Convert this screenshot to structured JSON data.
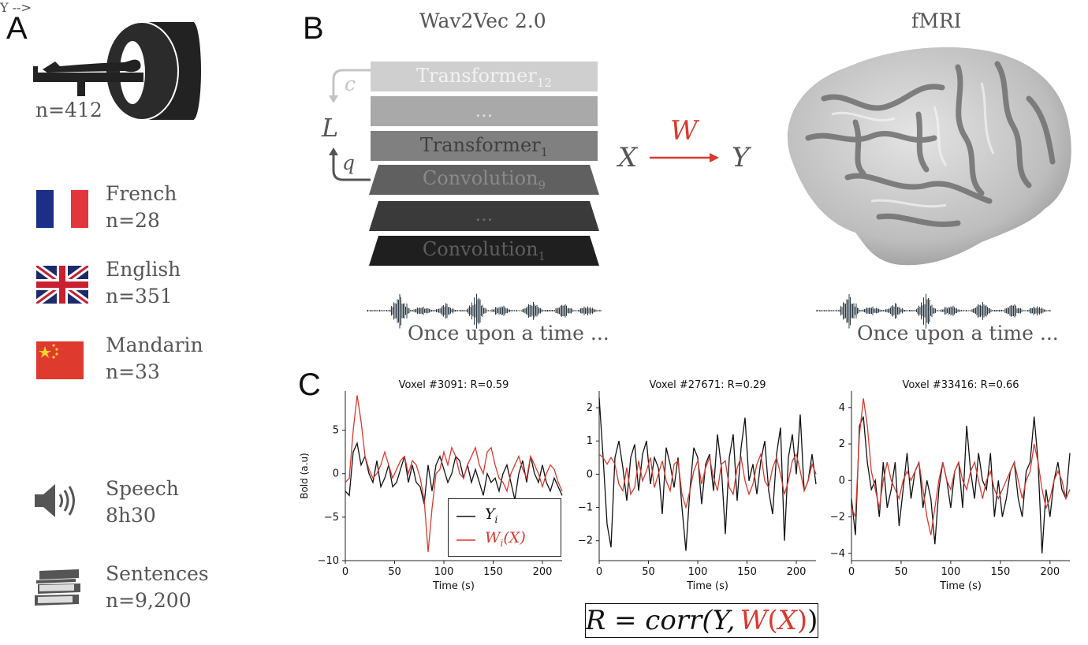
{
  "panels": {
    "a": "A",
    "b": "B",
    "c": "C"
  },
  "panel_a": {
    "participants": "n=412",
    "languages": [
      {
        "name": "French",
        "n": "n=28",
        "flag": "france-flag-icon"
      },
      {
        "name": "English",
        "n": "n=351",
        "flag": "uk-flag-icon"
      },
      {
        "name": "Mandarin",
        "n": "n=33",
        "flag": "china-flag-icon"
      }
    ],
    "speech": {
      "label": "Speech",
      "value": "8h30",
      "icon": "speaker-icon"
    },
    "sentences": {
      "label": "Sentences",
      "value": "n=9,200",
      "icon": "books-icon"
    }
  },
  "panel_b": {
    "model_title": "Wav2Vec 2.0",
    "brain_title": "fMRI",
    "layers": [
      {
        "name": "Transformer",
        "sub": "12"
      },
      {
        "name": "...",
        "sub": ""
      },
      {
        "name": "Transformer",
        "sub": "1"
      },
      {
        "name": "Convolution",
        "sub": "9"
      },
      {
        "name": "...",
        "sub": ""
      },
      {
        "name": "Convolution",
        "sub": "1"
      }
    ],
    "loss_label": "L",
    "c_label": "c",
    "q_label": "q",
    "x_label": "X",
    "y_label": "Y",
    "w_label": "W",
    "caption_left": "Once upon a time ...",
    "caption_right": "Once upon a time ..."
  },
  "formula": {
    "prefix": "R = corr(Y,",
    "w": "W",
    "paren_open": "(",
    "x": "X",
    "paren_close": ")",
    "suffix": ")"
  },
  "colors": {
    "red": "#d93a2f",
    "line_black": "#111111",
    "layer_shades": [
      "#cfcfcf",
      "#a9a9a9",
      "#7f7f7f",
      "#5f5f5f",
      "#3a3a3a",
      "#1e1e1e"
    ]
  },
  "chart_data": [
    {
      "type": "line",
      "title": "Voxel #3091: R=0.59",
      "xlabel": "Time (s)",
      "ylabel": "Bold (a.u)",
      "xlim": [
        0,
        220
      ],
      "ylim": [
        -10,
        9.5
      ],
      "xticks": [
        0,
        50,
        100,
        150,
        200
      ],
      "yticks": [
        -10,
        -5,
        0,
        5
      ],
      "legend": {
        "placement": "lower-center",
        "entries": [
          "Y_i",
          "W_i(X)"
        ]
      },
      "series": [
        {
          "name": "Y_i",
          "color": "#111111",
          "x": [
            0,
            4,
            8,
            12,
            16,
            20,
            24,
            28,
            32,
            36,
            40,
            44,
            48,
            52,
            56,
            60,
            64,
            68,
            72,
            76,
            80,
            84,
            88,
            92,
            96,
            100,
            104,
            108,
            112,
            116,
            120,
            124,
            128,
            132,
            136,
            140,
            144,
            148,
            152,
            156,
            160,
            164,
            168,
            172,
            176,
            180,
            184,
            188,
            192,
            196,
            200,
            204,
            208,
            212,
            216,
            220
          ],
          "y": [
            -2,
            -2.5,
            2.5,
            3.5,
            1,
            2,
            0,
            -1,
            1.5,
            -1.5,
            -0.5,
            1,
            -1.5,
            -1,
            0.5,
            2,
            -1,
            1,
            -1,
            -1.5,
            -3.5,
            1,
            -2,
            1,
            2,
            0.5,
            -1,
            0,
            2,
            1.5,
            -0.5,
            1,
            -1,
            0.5,
            -1,
            -2.5,
            0,
            -1,
            -0.5,
            -2,
            0,
            1,
            -1,
            -3,
            0,
            1.5,
            -1,
            2,
            0,
            -1,
            1,
            -1,
            -2,
            -0.5,
            -1.5,
            -2.5
          ]
        },
        {
          "name": "W_i(X)",
          "color": "#d93a2f",
          "x": [
            0,
            4,
            8,
            12,
            16,
            20,
            24,
            28,
            32,
            36,
            40,
            44,
            48,
            52,
            56,
            60,
            64,
            68,
            72,
            76,
            80,
            84,
            88,
            92,
            96,
            100,
            104,
            108,
            112,
            116,
            120,
            124,
            128,
            132,
            136,
            140,
            144,
            148,
            152,
            156,
            160,
            164,
            168,
            172,
            176,
            180,
            184,
            188,
            192,
            196,
            200,
            204,
            208,
            212,
            216,
            220
          ],
          "y": [
            -1,
            -0.5,
            5,
            9,
            6,
            2,
            0.5,
            -0.5,
            0,
            1,
            2.5,
            1,
            -0.5,
            0.5,
            1.5,
            2,
            0,
            1.5,
            1,
            -0.5,
            -3,
            -9,
            -4,
            0,
            0.5,
            2.5,
            1,
            3,
            2,
            0,
            -0.5,
            1,
            2,
            3,
            1,
            0,
            2.5,
            3,
            1,
            -0.5,
            -1,
            -2,
            0,
            1,
            2,
            0.5,
            -0.5,
            2,
            1,
            0,
            -1.5,
            0,
            1,
            0.5,
            -1,
            -2
          ]
        }
      ]
    },
    {
      "type": "line",
      "title": "Voxel #27671: R=0.29",
      "xlabel": "Time (s)",
      "ylabel": "",
      "xlim": [
        0,
        220
      ],
      "ylim": [
        -2.6,
        2.5
      ],
      "xticks": [
        0,
        50,
        100,
        150,
        200
      ],
      "yticks": [
        -2,
        -1,
        0,
        1,
        2
      ],
      "series": [
        {
          "name": "Y_i",
          "color": "#111111",
          "x": [
            0,
            4,
            8,
            12,
            16,
            20,
            24,
            28,
            32,
            36,
            40,
            44,
            48,
            52,
            56,
            60,
            64,
            68,
            72,
            76,
            80,
            84,
            88,
            92,
            96,
            100,
            104,
            108,
            112,
            116,
            120,
            124,
            128,
            132,
            136,
            140,
            144,
            148,
            152,
            156,
            160,
            164,
            168,
            172,
            176,
            180,
            184,
            188,
            192,
            196,
            200,
            204,
            208,
            212,
            216,
            220
          ],
          "y": [
            2.3,
            0.5,
            -1.5,
            -2.2,
            0.5,
            1,
            0.2,
            -0.8,
            0.5,
            0.9,
            -0.5,
            0.6,
            1,
            -0.3,
            0.5,
            0.2,
            -1.2,
            0.8,
            0.3,
            -0.4,
            0.5,
            -1,
            -2.3,
            -0.5,
            0.8,
            0.5,
            -0.9,
            0.3,
            0.6,
            -0.5,
            1.2,
            0.2,
            -1.8,
            0.5,
            1.2,
            -0.8,
            0.8,
            1.7,
            -0.2,
            0.3,
            -0.6,
            0.4,
            1,
            -0.5,
            -1.2,
            0.6,
            1.4,
            -2,
            0.5,
            1.2,
            0,
            1.8,
            -0.5,
            -0.2,
            0.6,
            -0.3
          ]
        },
        {
          "name": "W_i(X)",
          "color": "#d93a2f",
          "x": [
            0,
            4,
            8,
            12,
            16,
            20,
            24,
            28,
            32,
            36,
            40,
            44,
            48,
            52,
            56,
            60,
            64,
            68,
            72,
            76,
            80,
            84,
            88,
            92,
            96,
            100,
            104,
            108,
            112,
            116,
            120,
            124,
            128,
            132,
            136,
            140,
            144,
            148,
            152,
            156,
            160,
            164,
            168,
            172,
            176,
            180,
            184,
            188,
            192,
            196,
            200,
            204,
            208,
            212,
            216,
            220
          ],
          "y": [
            0.6,
            0.5,
            0.3,
            0.5,
            0.3,
            -0.3,
            -0.5,
            0.2,
            -0.6,
            -0.4,
            0.4,
            -0.2,
            0.1,
            0.5,
            -0.4,
            0,
            0.4,
            -0.2,
            -0.5,
            0.3,
            0.4,
            -0.6,
            -1,
            -0.5,
            0.1,
            0.4,
            -0.3,
            0.2,
            0.5,
            -0.1,
            -0.5,
            0.3,
            0.4,
            -0.4,
            -0.6,
            0.2,
            0.5,
            -0.2,
            -0.6,
            -0.3,
            0.3,
            0.6,
            -0.2,
            -0.4,
            0.2,
            0.5,
            0,
            -0.6,
            -0.2,
            0.4,
            0.6,
            0.1,
            -0.5,
            -0.2,
            0.3,
            0
          ]
        }
      ]
    },
    {
      "type": "line",
      "title": "Voxel #33416: R=0.66",
      "xlabel": "Time (s)",
      "ylabel": "",
      "xlim": [
        0,
        220
      ],
      "ylim": [
        -4.4,
        4.9
      ],
      "xticks": [
        0,
        50,
        100,
        150,
        200
      ],
      "yticks": [
        -4,
        -2,
        0,
        2,
        4
      ],
      "series": [
        {
          "name": "Y_i",
          "color": "#111111",
          "x": [
            0,
            4,
            8,
            12,
            16,
            20,
            24,
            28,
            32,
            36,
            40,
            44,
            48,
            52,
            56,
            60,
            64,
            68,
            72,
            76,
            80,
            84,
            88,
            92,
            96,
            100,
            104,
            108,
            112,
            116,
            120,
            124,
            128,
            132,
            136,
            140,
            144,
            148,
            152,
            156,
            160,
            164,
            168,
            172,
            176,
            180,
            184,
            188,
            192,
            196,
            200,
            204,
            208,
            212,
            216,
            220
          ],
          "y": [
            -1,
            -3,
            3,
            3.5,
            1,
            -0.5,
            0,
            -2,
            1,
            -1.5,
            -0.5,
            1,
            -2.5,
            -0.5,
            1.5,
            -1,
            0.5,
            1,
            -1.5,
            0,
            -1,
            -3.5,
            -0.5,
            1,
            0,
            -1.5,
            0.5,
            1,
            -1.5,
            3,
            0.5,
            -1,
            1.5,
            0,
            -0.5,
            1.5,
            -2,
            0,
            -2,
            -1,
            0.5,
            1,
            -1,
            -2,
            0.5,
            1,
            3.5,
            1,
            -4,
            -0.5,
            -2,
            0,
            1,
            -0.5,
            -1,
            1.5
          ]
        },
        {
          "name": "W_i(X)",
          "color": "#d93a2f",
          "x": [
            0,
            4,
            8,
            12,
            16,
            20,
            24,
            28,
            32,
            36,
            40,
            44,
            48,
            52,
            56,
            60,
            64,
            68,
            72,
            76,
            80,
            84,
            88,
            92,
            96,
            100,
            104,
            108,
            112,
            116,
            120,
            124,
            128,
            132,
            136,
            140,
            144,
            148,
            152,
            156,
            160,
            164,
            168,
            172,
            176,
            180,
            184,
            188,
            192,
            196,
            200,
            204,
            208,
            212,
            216,
            220
          ],
          "y": [
            -1.5,
            -2,
            2.5,
            4.5,
            3,
            0.5,
            -0.5,
            -1.5,
            0,
            1,
            0,
            -0.5,
            -1,
            0,
            0.5,
            0,
            0.5,
            1,
            -0.5,
            -2,
            -3,
            -1.5,
            0,
            1,
            0,
            -0.5,
            0.5,
            1,
            0,
            -0.5,
            0.5,
            1,
            0,
            -1,
            0,
            0.5,
            -0.5,
            -1,
            -0.5,
            0,
            0.5,
            1,
            0,
            -1,
            0,
            0.5,
            2,
            1,
            -0.5,
            -1.5,
            -1,
            0,
            0.5,
            0,
            -1,
            -0.5
          ]
        }
      ]
    }
  ]
}
